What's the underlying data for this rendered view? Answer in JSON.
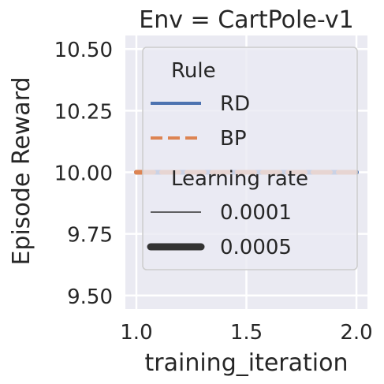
{
  "chart_data": {
    "type": "line",
    "title": "Env = CartPole-v1",
    "xlabel": "training_iteration",
    "ylabel": "Episode Reward",
    "xlim": [
      0.95,
      2.05
    ],
    "ylim": [
      9.445,
      10.555
    ],
    "xticks": [
      1.0,
      1.5,
      2.0
    ],
    "xtick_labels": [
      "1.0",
      "1.5",
      "2.0"
    ],
    "yticks": [
      9.5,
      9.75,
      10.0,
      10.25,
      10.5
    ],
    "ytick_labels": [
      "9.50",
      "9.75",
      "10.00",
      "10.25",
      "10.50"
    ],
    "grid": true,
    "background": "#eaeaf2",
    "legend_position": "upper-left",
    "legend": {
      "hue_title": "Rule",
      "hue_entries": [
        {
          "label": "RD",
          "color": "#4c72b0",
          "dash": "solid"
        },
        {
          "label": "BP",
          "color": "#dd8452",
          "dash": "dashed"
        }
      ],
      "size_title": "Learning rate",
      "size_entries": [
        {
          "label": "0.0001",
          "color": "#333333",
          "width": "thin"
        },
        {
          "label": "0.0005",
          "color": "#333333",
          "width": "thick"
        }
      ]
    },
    "series": [
      {
        "name": "RD",
        "learning_rate": "0.0005",
        "x": [
          1.0,
          2.0
        ],
        "y": [
          10.0,
          10.0
        ],
        "color": "#4c72b0",
        "dash": "solid"
      },
      {
        "name": "BP",
        "learning_rate": "0.0005",
        "x": [
          1.0,
          2.0
        ],
        "y": [
          10.0,
          10.0
        ],
        "color": "#dd8452",
        "dash": "dashed"
      }
    ]
  }
}
